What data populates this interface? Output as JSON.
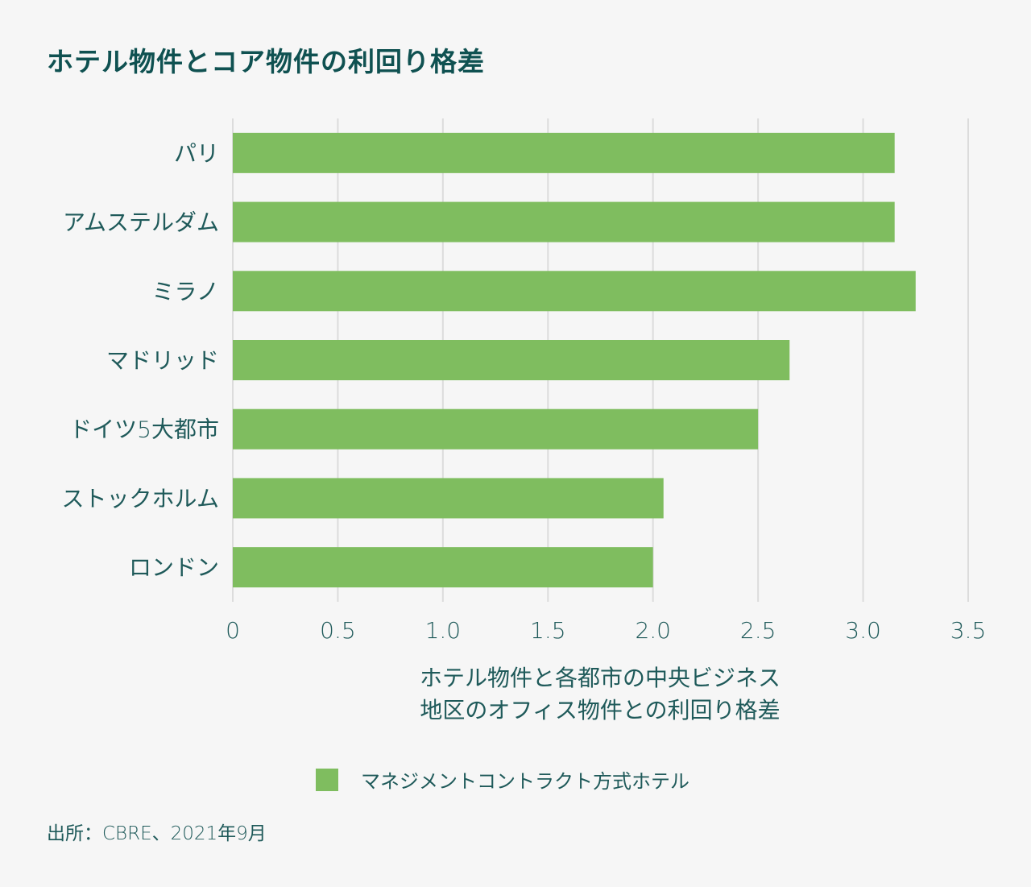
{
  "colors": {
    "background": "#f6f6f6",
    "bar": "#7fbd5f",
    "title": "#0f5151",
    "text": "#1f5a5a",
    "grid": "#dcdcdc"
  },
  "chart_data": {
    "type": "bar",
    "orientation": "horizontal",
    "title": "ホテル物件とコア物件の利回り格差",
    "categories": [
      "パリ",
      "アムステルダム",
      "ミラノ",
      "マドリッド",
      "ドイツ5大都市",
      "ストックホルム",
      "ロンドン"
    ],
    "series": [
      {
        "name": "マネジメントコントラクト方式ホテル",
        "values": [
          3.15,
          3.15,
          3.25,
          2.65,
          2.5,
          2.05,
          2.0
        ]
      }
    ],
    "xlim": [
      0,
      3.5
    ],
    "xticks": [
      "0",
      "0.5",
      "1.0",
      "1.5",
      "2.0",
      "2.5",
      "3.0",
      "3.5"
    ],
    "xlabel_lines": [
      "ホテル物件と各都市の中央ビジネス",
      "地区のオフィス物件との利回り格差"
    ],
    "grid": "vertical",
    "legend_position": "bottom"
  },
  "source": "出所：CBRE、2021年9月"
}
